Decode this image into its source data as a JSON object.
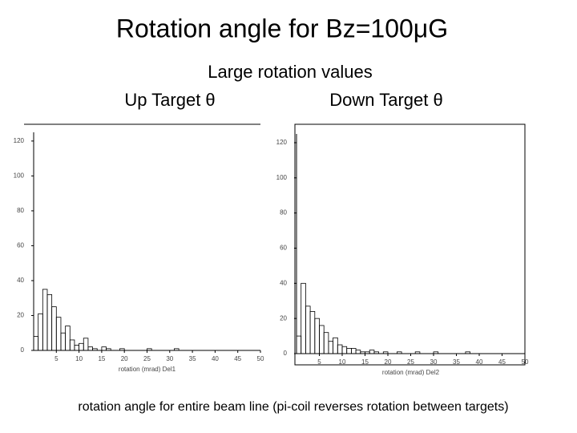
{
  "slide": {
    "title": "Rotation angle for Bz=100μG",
    "subtitle": "Large rotation values",
    "caption": "rotation angle for entire beam line (pi-coil reverses rotation between targets)"
  },
  "chart_data": [
    {
      "type": "histogram",
      "title": "Up Target θ",
      "xlabel": "rotation (mrad) Del1",
      "color": "#000000",
      "bins": [
        0,
        1,
        2,
        3,
        4,
        5,
        6,
        7,
        8,
        9,
        10,
        11,
        12,
        13,
        14,
        15,
        16,
        17,
        18,
        19,
        20,
        21,
        22,
        23,
        24,
        25,
        26,
        27,
        28,
        29,
        30,
        31,
        32,
        33,
        34,
        35,
        36,
        37,
        38,
        39,
        40,
        41,
        42,
        43,
        44,
        45,
        46,
        47,
        48,
        49,
        50
      ],
      "values": [
        8,
        21,
        35,
        32,
        25,
        19,
        10,
        14,
        6,
        3,
        4,
        7,
        2,
        1,
        0,
        2,
        1,
        0,
        0,
        1,
        0,
        0,
        0,
        0,
        0,
        1,
        0,
        0,
        0,
        0,
        0,
        1,
        0,
        0,
        0,
        0,
        0,
        0,
        0,
        0,
        0,
        0,
        0,
        0,
        0,
        0,
        0,
        0,
        0,
        0
      ],
      "xlim": [
        0,
        50
      ],
      "xticks": [
        5,
        10,
        15,
        20,
        25,
        30,
        35,
        40,
        45,
        50
      ],
      "ylim": [
        0,
        125
      ],
      "yticks": [
        0,
        20,
        40,
        60,
        80,
        100,
        120
      ]
    },
    {
      "type": "histogram",
      "title": "Down Target θ",
      "xlabel": "rotation (mrad) Del2",
      "color": "#000000",
      "bins": [
        0,
        1,
        2,
        3,
        4,
        5,
        6,
        7,
        8,
        9,
        10,
        11,
        12,
        13,
        14,
        15,
        16,
        17,
        18,
        19,
        20,
        21,
        22,
        23,
        24,
        25,
        26,
        27,
        28,
        29,
        30,
        31,
        32,
        33,
        34,
        35,
        36,
        37,
        38,
        39,
        40,
        41,
        42,
        43,
        44,
        45,
        46,
        47,
        48,
        49,
        50
      ],
      "values": [
        10,
        40,
        27,
        24,
        20,
        16,
        12,
        7,
        9,
        5,
        4,
        3,
        3,
        2,
        1,
        1,
        2,
        1,
        0,
        1,
        0,
        0,
        1,
        0,
        0,
        0,
        1,
        0,
        0,
        0,
        1,
        0,
        0,
        0,
        0,
        0,
        0,
        1,
        0,
        0,
        0,
        0,
        0,
        0,
        0,
        0,
        0,
        0,
        0,
        0
      ],
      "xlim": [
        0,
        50
      ],
      "xticks": [
        5,
        10,
        15,
        20,
        25,
        30,
        35,
        40,
        45,
        50
      ],
      "ylim": [
        0,
        125
      ],
      "yticks": [
        0,
        20,
        40,
        60,
        80,
        100,
        120
      ]
    }
  ]
}
